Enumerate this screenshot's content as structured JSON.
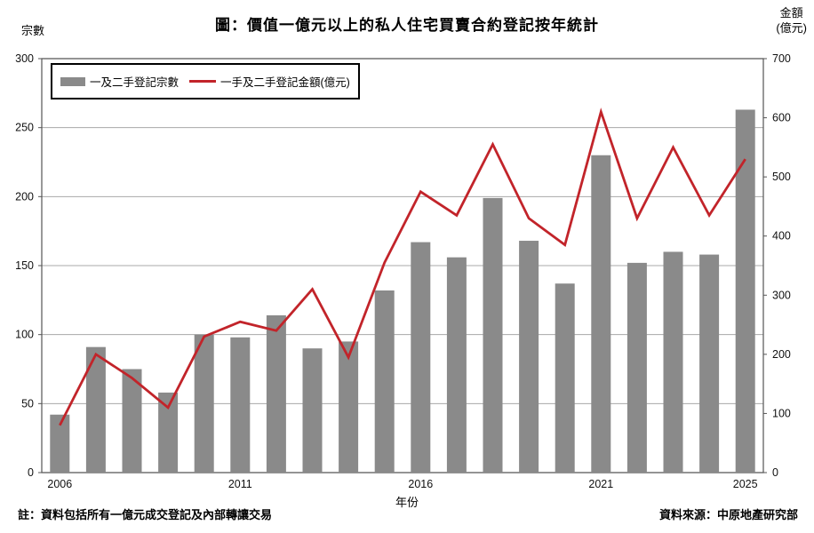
{
  "title": "圖：價值一億元以上的私人住宅買賣合約登記按年統計",
  "left_axis_unit": "宗數",
  "right_axis_unit": "金額\n(億元)",
  "x_axis_title": "年份",
  "legend": {
    "bars": "一及二手登記宗數",
    "line": "一手及二手登記金額(億元)"
  },
  "footnote": "註：資料包括所有一億元成交登記及內部轉讓交易",
  "source": "資料來源：中原地產研究部",
  "colors": {
    "bar": "#8a8a8a",
    "line": "#c2242a",
    "grid": "#a8a8a8",
    "frame": "#555555",
    "text": "#111111"
  },
  "chart_data": {
    "type": "combo-bar-line",
    "title": "圖：價值一億元以上的私人住宅買賣合約登記按年統計",
    "xlabel": "年份",
    "grid": true,
    "legend_position": "top-left",
    "x": [
      2006,
      2007,
      2008,
      2009,
      2010,
      2011,
      2012,
      2013,
      2014,
      2015,
      2016,
      2017,
      2018,
      2019,
      2020,
      2021,
      2022,
      2023,
      2024,
      2025
    ],
    "series": [
      {
        "name": "一及二手登記宗數",
        "type": "bar",
        "axis": "left",
        "values": [
          42,
          91,
          75,
          58,
          100,
          98,
          114,
          90,
          95,
          132,
          167,
          156,
          199,
          168,
          137,
          230,
          152,
          160,
          158,
          263
        ]
      },
      {
        "name": "一手及二手登記金額(億元)",
        "type": "line",
        "axis": "right",
        "values": [
          80,
          200,
          160,
          110,
          230,
          255,
          240,
          310,
          195,
          355,
          475,
          435,
          555,
          430,
          385,
          610,
          430,
          550,
          435,
          530
        ]
      }
    ],
    "left_axis": {
      "label": "宗數",
      "range": [
        0,
        300
      ],
      "tick_step": 50
    },
    "right_axis": {
      "label": "金額(億元)",
      "range": [
        0,
        700
      ],
      "tick_step": 100
    },
    "x_tick_labels": [
      {
        "label": "2006",
        "index": 0
      },
      {
        "label": "2011",
        "index": 5
      },
      {
        "label": "2016",
        "index": 10
      },
      {
        "label": "2021",
        "index": 15
      },
      {
        "label": "2025",
        "index": 19
      }
    ]
  }
}
